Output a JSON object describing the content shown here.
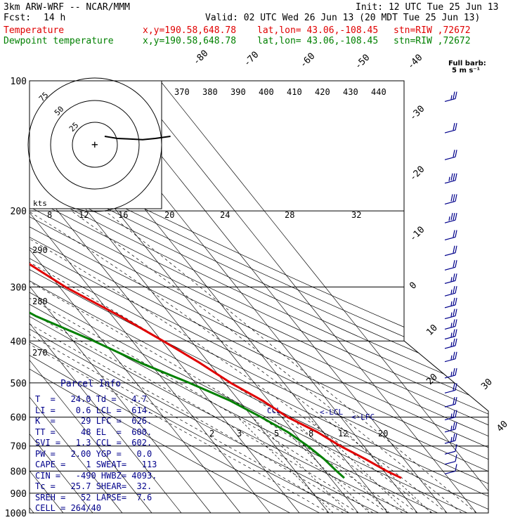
{
  "header": {
    "model": "3km ARW-WRF -- NCAR/MMM",
    "init": "Init: 12 UTC Tue 25 Jun 13",
    "fcst_label": "Fcst:",
    "fcst_value": "14 h",
    "valid": "Valid: 02 UTC Wed 26 Jun 13 (20 MDT Tue 25 Jun 13)",
    "temp_label": "Temperature",
    "dew_label": "Dewpoint temperature",
    "xy": "x,y=190.58,648.78",
    "latlon": "lat,lon= 43.06,-108.45",
    "stn": "stn=RIW ,72672"
  },
  "legend_barb": {
    "line1": "Full barb:",
    "line2": "5 m s⁻¹"
  },
  "hodograph": {
    "rings": [
      "75",
      "50",
      "25"
    ],
    "units": "kts",
    "center_mark": "+"
  },
  "parcel_info": {
    "title": "Parcel Info",
    "rows": [
      "T  =   24.0 Td =   4.7",
      "LI =    0.6 LCL =  614.",
      "K  =     29 LFC =  626.",
      "TT =     48 EL  =  600.",
      "SVI =   1.3 CCL =  602.",
      "PW =   2.00 YGP =   0.0",
      "CAPE =    1 SWEAT=   113",
      "CIN =   -490 HWBZ= 4093.",
      "Tc =   25.7 SHEAR=  32.",
      "SREH =   52 LAPSE=  7.6",
      "CELL = 264/40"
    ]
  },
  "chart_data": {
    "type": "line",
    "subtype": "skew-T log-p",
    "y_axis": {
      "label": "pressure (hPa)",
      "ticks": [
        100,
        200,
        300,
        400,
        500,
        600,
        700,
        800,
        900,
        1000
      ]
    },
    "isotherm_labels": [
      "-80",
      "-70",
      "-60",
      "-50",
      "-40",
      "-30",
      "-20",
      "-10",
      "0",
      "10",
      "20",
      "30",
      "40"
    ],
    "theta_labels": [
      "370",
      "380",
      "390",
      "400",
      "410",
      "420",
      "430",
      "440"
    ],
    "theta_side_labels": [
      "290",
      "280",
      "270"
    ],
    "mixing_ratio_top_labels": [
      "8",
      "12",
      "16",
      "20",
      "24",
      "28",
      "32"
    ],
    "mixing_ratio_labels": [
      "2",
      "3",
      "5",
      "8",
      "12",
      "20"
    ],
    "levels_annotations": [
      "CCL",
      "<-LCL",
      "<-LFC"
    ],
    "series": [
      {
        "name": "Temperature",
        "color": "#e00000",
        "points": [
          [
            100,
            -55
          ],
          [
            125,
            -57
          ],
          [
            150,
            -58
          ],
          [
            175,
            -58
          ],
          [
            200,
            -56.5
          ],
          [
            250,
            -47
          ],
          [
            300,
            -38
          ],
          [
            350,
            -27.5
          ],
          [
            400,
            -19.5
          ],
          [
            450,
            -13
          ],
          [
            500,
            -8
          ],
          [
            550,
            -2
          ],
          [
            600,
            2
          ],
          [
            650,
            8
          ],
          [
            700,
            12
          ],
          [
            750,
            17
          ],
          [
            800,
            21
          ],
          [
            830,
            24
          ]
        ]
      },
      {
        "name": "Dewpoint temperature",
        "color": "#008000",
        "points": [
          [
            100,
            -80
          ],
          [
            120,
            -87
          ],
          [
            150,
            -88
          ],
          [
            175,
            -85
          ],
          [
            200,
            -78
          ],
          [
            250,
            -72
          ],
          [
            300,
            -66
          ],
          [
            350,
            -56
          ],
          [
            400,
            -43
          ],
          [
            450,
            -33
          ],
          [
            500,
            -22
          ],
          [
            550,
            -13
          ],
          [
            600,
            -7
          ],
          [
            650,
            -2
          ],
          [
            700,
            1
          ],
          [
            750,
            3
          ],
          [
            800,
            4
          ],
          [
            830,
            4.7
          ]
        ]
      }
    ],
    "hodograph_trace": [
      [
        0,
        0
      ],
      [
        4,
        2
      ],
      [
        10,
        5
      ],
      [
        18,
        6
      ],
      [
        30,
        8
      ],
      [
        40,
        5
      ],
      [
        52,
        0
      ]
    ],
    "wind_barbs": [
      {
        "p": 110,
        "spd": 15
      },
      {
        "p": 130,
        "spd": 20
      },
      {
        "p": 150,
        "spd": 20
      },
      {
        "p": 170,
        "spd": 25
      },
      {
        "p": 190,
        "spd": 30
      },
      {
        "p": 210,
        "spd": 25
      },
      {
        "p": 230,
        "spd": 20
      },
      {
        "p": 250,
        "spd": 20
      },
      {
        "p": 270,
        "spd": 20
      },
      {
        "p": 290,
        "spd": 15
      },
      {
        "p": 310,
        "spd": 15
      },
      {
        "p": 330,
        "spd": 15
      },
      {
        "p": 350,
        "spd": 15
      },
      {
        "p": 370,
        "spd": 15
      },
      {
        "p": 390,
        "spd": 15
      },
      {
        "p": 410,
        "spd": 15
      },
      {
        "p": 440,
        "spd": 15
      },
      {
        "p": 480,
        "spd": 15
      },
      {
        "p": 520,
        "spd": 20
      },
      {
        "p": 560,
        "spd": 20
      },
      {
        "p": 600,
        "spd": 15
      },
      {
        "p": 640,
        "spd": 15
      },
      {
        "p": 680,
        "spd": 15
      },
      {
        "p": 720,
        "spd": 10
      },
      {
        "p": 760,
        "spd": 10
      },
      {
        "p": 800,
        "spd": 10
      }
    ]
  }
}
